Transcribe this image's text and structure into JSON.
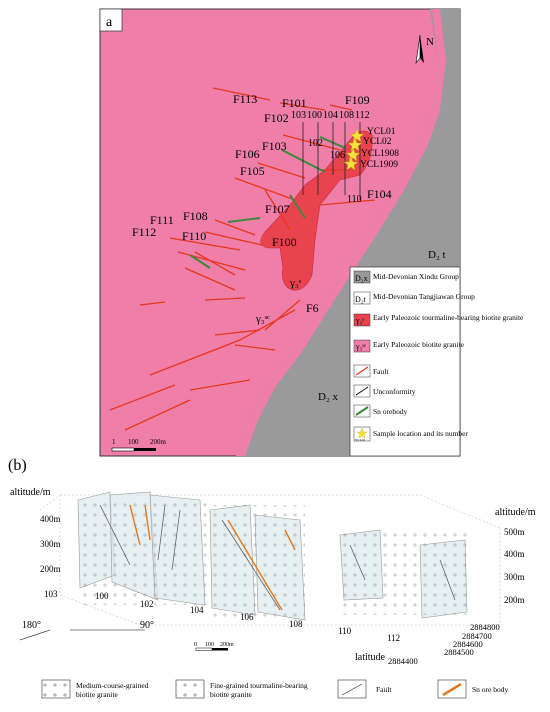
{
  "panel_a": {
    "label": "a",
    "north": "N",
    "faults": [
      "F113",
      "F101",
      "F109",
      "F102",
      "F103",
      "F106",
      "F105",
      "F104",
      "F107",
      "F108",
      "F111",
      "F112",
      "F110",
      "F100",
      "F6"
    ],
    "lines": [
      "103",
      "100",
      "104",
      "108",
      "112",
      "102",
      "106",
      "110"
    ],
    "samples": [
      "YCL01",
      "YCL02",
      "YCL1908",
      "YCL1909"
    ],
    "units": {
      "d2t": "D₂ t",
      "d2x": "D₂ x",
      "granite_red": "γ₃ˢ",
      "granite_pink": "γ₃ˢᶜ"
    },
    "scale": {
      "zero": "1",
      "mid": "100",
      "end": "200m"
    },
    "legend": [
      {
        "symbol": "D₂x",
        "text": "Mid-Devonian Xindu Group"
      },
      {
        "symbol": "D₂t",
        "text": "Mid-Devonian Tangjiawan Group"
      },
      {
        "symbol": "γ₃ˢ",
        "text": "Early Paleozoic tourmaline-bearing biotite granite"
      },
      {
        "symbol": "γ₃ˢᶜ",
        "text": "Early Paleozoic biotite granite"
      },
      {
        "symbol": "",
        "text": "Fault"
      },
      {
        "symbol": "",
        "text": "Unconformity"
      },
      {
        "symbol": "",
        "text": "Sn orebody"
      },
      {
        "symbol": "YCL01",
        "text": "Sample location and its number"
      }
    ],
    "colors": {
      "granite_pink": "#ef7ea8",
      "granite_red": "#e8434f",
      "strata_gray": "#9a9a9a",
      "fault": "#e8361c",
      "orebody": "#3a8a3a",
      "star": "#f6e23a"
    }
  },
  "panel_b": {
    "label": "(b)",
    "altitude_left": "altitude/m",
    "altitude_right": "altitude/m",
    "left_ticks": [
      "400m",
      "300m",
      "200m"
    ],
    "right_ticks": [
      "500m",
      "400m",
      "300m",
      "200m"
    ],
    "line_ticks": [
      "103",
      "100",
      "102",
      "104",
      "106",
      "108",
      "110",
      "112"
    ],
    "lat_ticks": [
      "2884800",
      "2884700",
      "2884600",
      "2884500",
      "2884400"
    ],
    "latitude": "latitude",
    "angle_left": "180°",
    "angle_right": "90°",
    "scale": {
      "zero": "0",
      "mid": "100",
      "end": "200m"
    },
    "legend": [
      {
        "text": "Medium-course-grained biotite granite"
      },
      {
        "text": "Fine-grained tourmaline-bearing biotite granite"
      },
      {
        "text": "Fault"
      },
      {
        "text": "Sn ore body"
      }
    ]
  }
}
